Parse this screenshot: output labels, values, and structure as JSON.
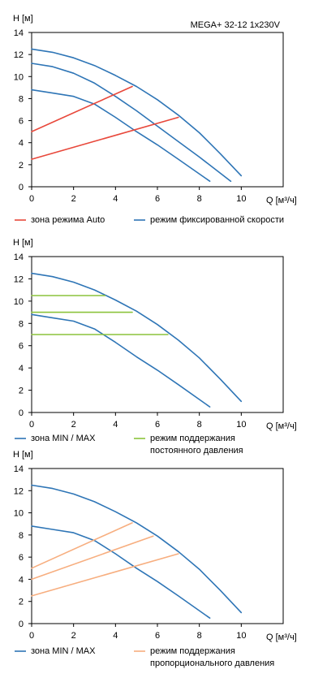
{
  "colors": {
    "blue": "#2E75B6",
    "red": "#E8483B",
    "green": "#8CC43C",
    "orange": "#F7AE7F"
  },
  "chart_data": [
    {
      "type": "line",
      "title": "MEGA+ 32-12 1x230V",
      "xlabel": "Q [м³/ч]",
      "ylabel": "H [м]",
      "xlim": [
        0,
        12
      ],
      "ylim": [
        0,
        14
      ],
      "xticks": [
        "0",
        "2",
        "4",
        "6",
        "8",
        "10"
      ],
      "yticks": [
        "0",
        "2",
        "4",
        "6",
        "8",
        "10",
        "12",
        "14"
      ],
      "grid": false,
      "series": [
        {
          "name": "режим фиксированной скорости",
          "color": "#2E75B6",
          "x": [
            0,
            1,
            2,
            3,
            4,
            5,
            6,
            7,
            8,
            9,
            10
          ],
          "y": [
            12.5,
            12.2,
            11.7,
            11.0,
            10.1,
            9.1,
            7.9,
            6.5,
            4.9,
            3.0,
            1.0
          ]
        },
        {
          "name": "",
          "color": "#2E75B6",
          "x": [
            0,
            1,
            2,
            3,
            4,
            5,
            6,
            7,
            8,
            9.5
          ],
          "y": [
            11.2,
            10.9,
            10.3,
            9.4,
            8.2,
            6.9,
            5.5,
            4.1,
            2.7,
            0.5
          ]
        },
        {
          "name": "",
          "color": "#2E75B6",
          "x": [
            0,
            1,
            2,
            3,
            4,
            5,
            6,
            7,
            8.5
          ],
          "y": [
            8.8,
            8.5,
            8.2,
            7.5,
            6.3,
            5.0,
            3.8,
            2.5,
            0.5
          ]
        },
        {
          "name": "зона режима Auto",
          "color": "#E8483B",
          "x": [
            0,
            4.8
          ],
          "y": [
            5.0,
            9.1
          ]
        },
        {
          "name": "",
          "color": "#E8483B",
          "x": [
            0,
            7.0
          ],
          "y": [
            2.5,
            6.3
          ]
        }
      ],
      "legend": [
        {
          "label": "зона режима Auto",
          "color": "#E8483B"
        },
        {
          "label": "режим фиксированной скорости",
          "color": "#2E75B6"
        }
      ]
    },
    {
      "type": "line",
      "title": "",
      "xlabel": "Q [м³/ч]",
      "ylabel": "H [м]",
      "xlim": [
        0,
        12
      ],
      "ylim": [
        0,
        14
      ],
      "xticks": [
        "0",
        "2",
        "4",
        "6",
        "8",
        "10"
      ],
      "yticks": [
        "0",
        "2",
        "4",
        "6",
        "8",
        "10",
        "12",
        "14"
      ],
      "grid": false,
      "series": [
        {
          "name": "зона MIN / MAX",
          "color": "#2E75B6",
          "x": [
            0,
            1,
            2,
            3,
            4,
            5,
            6,
            7,
            8,
            9,
            10
          ],
          "y": [
            12.5,
            12.2,
            11.7,
            11.0,
            10.1,
            9.1,
            7.9,
            6.5,
            4.9,
            3.0,
            1.0
          ]
        },
        {
          "name": "",
          "color": "#2E75B6",
          "x": [
            0,
            1,
            2,
            3,
            4,
            5,
            6,
            7,
            8.5
          ],
          "y": [
            8.8,
            8.5,
            8.2,
            7.5,
            6.3,
            5.0,
            3.8,
            2.5,
            0.5
          ]
        },
        {
          "name": "режим поддержания постоянного давления",
          "color": "#8CC43C",
          "x": [
            0,
            3.5
          ],
          "y": [
            10.5,
            10.5
          ]
        },
        {
          "name": "",
          "color": "#8CC43C",
          "x": [
            0,
            4.8
          ],
          "y": [
            9.0,
            9.0
          ]
        },
        {
          "name": "",
          "color": "#8CC43C",
          "x": [
            0,
            6.5
          ],
          "y": [
            7.0,
            7.0
          ]
        }
      ],
      "legend": [
        {
          "label": "зона MIN / MAX",
          "color": "#2E75B6"
        },
        {
          "label": "режим поддержания\nпостоянного давления",
          "color": "#8CC43C"
        }
      ]
    },
    {
      "type": "line",
      "title": "",
      "xlabel": "Q [м³/ч]",
      "ylabel": "H [м]",
      "xlim": [
        0,
        12
      ],
      "ylim": [
        0,
        14
      ],
      "xticks": [
        "0",
        "2",
        "4",
        "6",
        "8",
        "10"
      ],
      "yticks": [
        "0",
        "2",
        "4",
        "6",
        "8",
        "10",
        "12",
        "14"
      ],
      "grid": false,
      "series": [
        {
          "name": "зона MIN / MAX",
          "color": "#2E75B6",
          "x": [
            0,
            1,
            2,
            3,
            4,
            5,
            6,
            7,
            8,
            9,
            10
          ],
          "y": [
            12.5,
            12.2,
            11.7,
            11.0,
            10.1,
            9.1,
            7.9,
            6.5,
            4.9,
            3.0,
            1.0
          ]
        },
        {
          "name": "",
          "color": "#2E75B6",
          "x": [
            0,
            1,
            2,
            3,
            4,
            5,
            6,
            7,
            8.5
          ],
          "y": [
            8.8,
            8.5,
            8.2,
            7.5,
            6.3,
            5.0,
            3.8,
            2.5,
            0.5
          ]
        },
        {
          "name": "режим поддержания пропорционального давления",
          "color": "#F7AE7F",
          "x": [
            0,
            4.8
          ],
          "y": [
            5.0,
            9.1
          ]
        },
        {
          "name": "",
          "color": "#F7AE7F",
          "x": [
            0,
            5.8
          ],
          "y": [
            4.0,
            7.9
          ]
        },
        {
          "name": "",
          "color": "#F7AE7F",
          "x": [
            0,
            7.0
          ],
          "y": [
            2.5,
            6.3
          ]
        }
      ],
      "legend": [
        {
          "label": "зона MIN / MAX",
          "color": "#2E75B6"
        },
        {
          "label": "режим поддержания\nпропорционального давления",
          "color": "#F7AE7F"
        }
      ]
    }
  ]
}
